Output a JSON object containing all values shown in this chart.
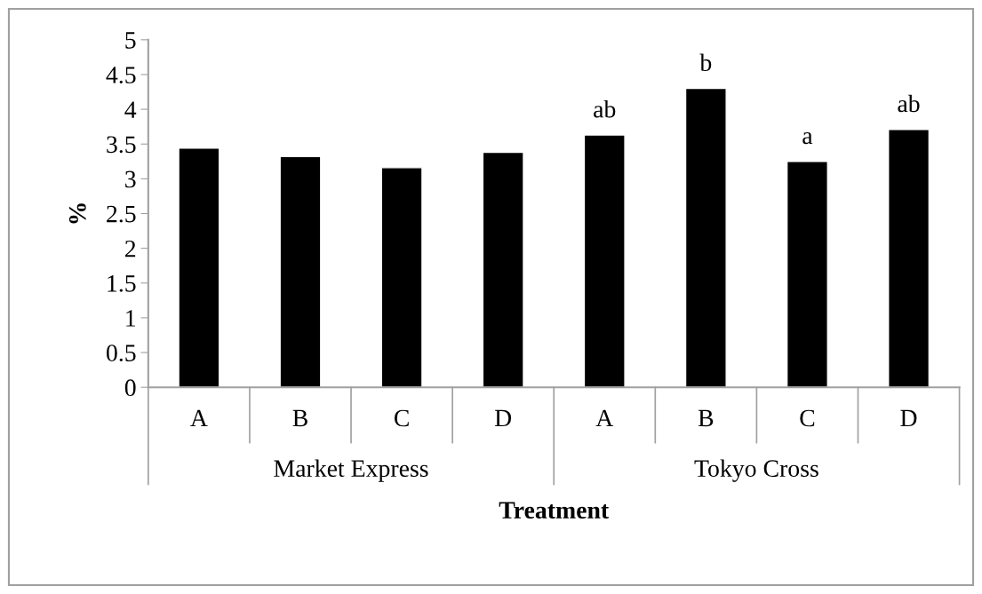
{
  "chart_data": {
    "type": "bar",
    "xlabel": "Treatment",
    "ylabel": "%",
    "categories": [
      "A",
      "B",
      "C",
      "D",
      "A",
      "B",
      "C",
      "D"
    ],
    "values": [
      3.44,
      3.32,
      3.16,
      3.38,
      3.63,
      4.3,
      3.25,
      3.71
    ],
    "color": "#000000",
    "value_labels": [
      null,
      null,
      null,
      null,
      "ab",
      "b",
      "a",
      "ab"
    ],
    "annotations": [
      "Market Express",
      "Tokyo Cross"
    ],
    "ylim": [
      0,
      5
    ],
    "yticks": [
      0,
      0.5,
      1,
      1.5,
      2,
      2.5,
      3,
      3.5,
      4,
      4.5,
      5
    ],
    "grid": false
  }
}
